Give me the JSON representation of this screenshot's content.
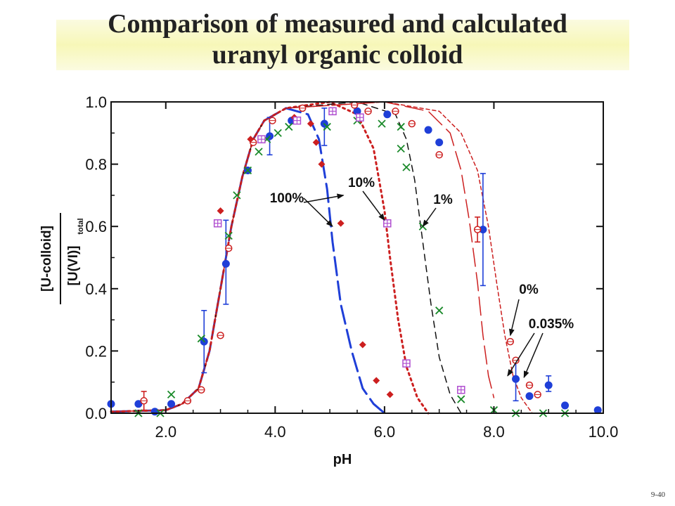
{
  "slide": {
    "title_line1": "Comparison of measured and calculated",
    "title_line2": "uranyl organic colloid",
    "page_number": "9-40"
  },
  "chart_data": {
    "type": "scatter",
    "xlabel": "pH",
    "ylabel_numerator": "[U-colloid]",
    "ylabel_denominator": "[U(VI)]",
    "ylabel_subscript": "total",
    "xlim": [
      1.0,
      10.0
    ],
    "ylim": [
      0.0,
      1.0
    ],
    "xticks": [
      "2.0",
      "4.0",
      "6.0",
      "8.0",
      "10.0"
    ],
    "xtick_values": [
      2,
      4,
      6,
      8,
      10
    ],
    "yticks": [
      "0.0",
      "0.2",
      "0.4",
      "0.6",
      "0.8",
      "1.0"
    ],
    "ytick_values": [
      0,
      0.2,
      0.4,
      0.6,
      0.8,
      1.0
    ],
    "colors": {
      "blue": "#1f3fd8",
      "red": "#cc1f1f",
      "green": "#1a8a2a",
      "violet": "#b04fd0",
      "black": "#111111"
    },
    "curves": [
      {
        "label": "100%",
        "style": "long-dash",
        "color": "#1f3fd8",
        "width": 3,
        "points": [
          [
            1.0,
            0.005
          ],
          [
            2.0,
            0.01
          ],
          [
            2.3,
            0.03
          ],
          [
            2.6,
            0.08
          ],
          [
            2.8,
            0.2
          ],
          [
            3.0,
            0.4
          ],
          [
            3.2,
            0.6
          ],
          [
            3.4,
            0.76
          ],
          [
            3.6,
            0.88
          ],
          [
            3.8,
            0.94
          ],
          [
            4.2,
            0.98
          ],
          [
            4.6,
            0.96
          ],
          [
            4.8,
            0.88
          ],
          [
            4.95,
            0.72
          ],
          [
            5.05,
            0.55
          ],
          [
            5.2,
            0.35
          ],
          [
            5.4,
            0.2
          ],
          [
            5.6,
            0.08
          ],
          [
            5.8,
            0.03
          ],
          [
            6.0,
            0.0
          ]
        ]
      },
      {
        "label": "10%",
        "style": "dotted",
        "color": "#cc1f1f",
        "width": 3,
        "points": [
          [
            1.0,
            0.005
          ],
          [
            2.0,
            0.01
          ],
          [
            2.3,
            0.03
          ],
          [
            2.6,
            0.08
          ],
          [
            2.8,
            0.2
          ],
          [
            3.0,
            0.4
          ],
          [
            3.2,
            0.6
          ],
          [
            3.4,
            0.76
          ],
          [
            3.6,
            0.88
          ],
          [
            3.8,
            0.94
          ],
          [
            4.2,
            0.98
          ],
          [
            5.0,
            1.0
          ],
          [
            5.5,
            0.96
          ],
          [
            5.8,
            0.85
          ],
          [
            6.0,
            0.65
          ],
          [
            6.1,
            0.5
          ],
          [
            6.25,
            0.3
          ],
          [
            6.4,
            0.15
          ],
          [
            6.6,
            0.05
          ],
          [
            6.8,
            0.0
          ]
        ]
      },
      {
        "label": "1%",
        "style": "dash",
        "color": "#111111",
        "width": 1.5,
        "points": [
          [
            1.0,
            0.005
          ],
          [
            2.0,
            0.01
          ],
          [
            2.3,
            0.03
          ],
          [
            2.6,
            0.08
          ],
          [
            2.8,
            0.2
          ],
          [
            3.0,
            0.4
          ],
          [
            3.2,
            0.6
          ],
          [
            3.4,
            0.76
          ],
          [
            3.6,
            0.88
          ],
          [
            3.8,
            0.94
          ],
          [
            4.2,
            0.98
          ],
          [
            5.5,
            1.0
          ],
          [
            6.2,
            0.96
          ],
          [
            6.4,
            0.88
          ],
          [
            6.55,
            0.75
          ],
          [
            6.7,
            0.55
          ],
          [
            6.85,
            0.35
          ],
          [
            7.0,
            0.18
          ],
          [
            7.2,
            0.06
          ],
          [
            7.4,
            0.0
          ]
        ]
      },
      {
        "label": "0%",
        "style": "long-dash",
        "color": "#cc1f1f",
        "width": 1.5,
        "points": [
          [
            1.0,
            0.005
          ],
          [
            2.0,
            0.01
          ],
          [
            2.3,
            0.03
          ],
          [
            2.6,
            0.08
          ],
          [
            2.8,
            0.2
          ],
          [
            3.0,
            0.4
          ],
          [
            3.2,
            0.6
          ],
          [
            3.4,
            0.76
          ],
          [
            3.6,
            0.88
          ],
          [
            3.8,
            0.94
          ],
          [
            4.2,
            0.98
          ],
          [
            6.0,
            1.0
          ],
          [
            6.8,
            0.97
          ],
          [
            7.2,
            0.9
          ],
          [
            7.4,
            0.78
          ],
          [
            7.55,
            0.62
          ],
          [
            7.7,
            0.42
          ],
          [
            7.8,
            0.25
          ],
          [
            7.9,
            0.12
          ],
          [
            8.0,
            0.05
          ]
        ]
      },
      {
        "label": "0.035%",
        "style": "short-dash",
        "color": "#cc1f1f",
        "width": 1.5,
        "points": [
          [
            1.0,
            0.005
          ],
          [
            2.0,
            0.01
          ],
          [
            2.3,
            0.03
          ],
          [
            2.6,
            0.08
          ],
          [
            2.8,
            0.2
          ],
          [
            3.0,
            0.4
          ],
          [
            3.2,
            0.6
          ],
          [
            3.4,
            0.76
          ],
          [
            3.6,
            0.88
          ],
          [
            3.8,
            0.94
          ],
          [
            4.2,
            0.98
          ],
          [
            6.0,
            1.0
          ],
          [
            7.0,
            0.97
          ],
          [
            7.4,
            0.9
          ],
          [
            7.7,
            0.78
          ],
          [
            7.9,
            0.6
          ],
          [
            8.05,
            0.42
          ],
          [
            8.2,
            0.25
          ],
          [
            8.35,
            0.12
          ],
          [
            8.5,
            0.05
          ],
          [
            8.7,
            0.0
          ]
        ]
      }
    ],
    "series": [
      {
        "marker": "filled-circle",
        "color": "#1f3fd8",
        "points": [
          [
            1.0,
            0.03
          ],
          [
            1.5,
            0.03
          ],
          [
            1.8,
            0.005
          ],
          [
            2.1,
            0.03
          ],
          [
            2.7,
            0.23
          ],
          [
            3.1,
            0.48
          ],
          [
            3.5,
            0.78
          ],
          [
            3.9,
            0.89
          ],
          [
            4.3,
            0.94
          ],
          [
            4.9,
            0.93
          ],
          [
            5.5,
            0.97
          ],
          [
            6.05,
            0.96
          ],
          [
            6.8,
            0.91
          ],
          [
            7.0,
            0.87
          ],
          [
            7.8,
            0.59
          ],
          [
            8.4,
            0.11
          ],
          [
            8.65,
            0.055
          ],
          [
            9.0,
            0.09
          ],
          [
            9.3,
            0.025
          ],
          [
            9.9,
            0.01
          ]
        ],
        "errors": [
          [
            2.7,
            0.13,
            0.33
          ],
          [
            3.1,
            0.35,
            0.62
          ],
          [
            3.9,
            0.83,
            0.95
          ],
          [
            4.9,
            0.86,
            0.98
          ],
          [
            7.8,
            0.41,
            0.77
          ],
          [
            8.4,
            0.04,
            0.17
          ],
          [
            9.0,
            0.07,
            0.12
          ]
        ]
      },
      {
        "marker": "open-circle",
        "color": "#cc1f1f",
        "points": [
          [
            1.6,
            0.04
          ],
          [
            2.4,
            0.04
          ],
          [
            2.65,
            0.075
          ],
          [
            3.0,
            0.25
          ],
          [
            3.15,
            0.53
          ],
          [
            3.6,
            0.87
          ],
          [
            3.95,
            0.94
          ],
          [
            4.5,
            0.98
          ],
          [
            5.05,
            0.97
          ],
          [
            5.45,
            0.99
          ],
          [
            5.7,
            0.97
          ],
          [
            6.2,
            0.97
          ],
          [
            6.5,
            0.93
          ],
          [
            7.0,
            0.83
          ],
          [
            7.7,
            0.59
          ],
          [
            8.3,
            0.23
          ],
          [
            8.4,
            0.17
          ],
          [
            8.65,
            0.09
          ],
          [
            8.8,
            0.06
          ]
        ],
        "errors": [
          [
            1.6,
            0.01,
            0.07
          ],
          [
            7.7,
            0.55,
            0.63
          ]
        ]
      },
      {
        "marker": "filled-diamond",
        "color": "#cc1f1f",
        "points": [
          [
            3.0,
            0.65
          ],
          [
            3.55,
            0.88
          ],
          [
            4.35,
            0.95
          ],
          [
            4.65,
            0.93
          ],
          [
            4.75,
            0.87
          ],
          [
            4.85,
            0.8
          ],
          [
            5.2,
            0.61
          ],
          [
            5.6,
            0.22
          ],
          [
            5.85,
            0.105
          ],
          [
            6.1,
            0.06
          ]
        ]
      },
      {
        "marker": "cross",
        "color": "#1a8a2a",
        "points": [
          [
            1.5,
            0.0
          ],
          [
            1.9,
            0.0
          ],
          [
            2.1,
            0.06
          ],
          [
            2.65,
            0.24
          ],
          [
            3.15,
            0.57
          ],
          [
            3.3,
            0.7
          ],
          [
            3.5,
            0.78
          ],
          [
            3.7,
            0.84
          ],
          [
            3.85,
            0.88
          ],
          [
            4.05,
            0.9
          ],
          [
            4.25,
            0.92
          ],
          [
            4.95,
            0.92
          ],
          [
            5.5,
            0.94
          ],
          [
            5.95,
            0.93
          ],
          [
            6.3,
            0.92
          ],
          [
            6.3,
            0.85
          ],
          [
            6.4,
            0.79
          ],
          [
            6.7,
            0.6
          ],
          [
            7.0,
            0.33
          ],
          [
            7.4,
            0.045
          ],
          [
            8.0,
            0.01
          ],
          [
            8.4,
            0.0
          ],
          [
            8.9,
            0.0
          ],
          [
            9.3,
            0.0
          ]
        ]
      },
      {
        "marker": "boxed-plus",
        "color": "#b04fd0",
        "points": [
          [
            2.95,
            0.61
          ],
          [
            3.75,
            0.88
          ],
          [
            4.4,
            0.94
          ],
          [
            5.05,
            0.97
          ],
          [
            5.55,
            0.95
          ],
          [
            6.05,
            0.61
          ],
          [
            6.4,
            0.16
          ],
          [
            7.4,
            0.075
          ]
        ]
      }
    ],
    "annotations": [
      {
        "text": "100%",
        "arrows_to": [
          [
            5.05,
            0.6
          ],
          [
            5.25,
            0.7
          ]
        ]
      },
      {
        "text": "10%",
        "arrows_to": [
          [
            6.0,
            0.62
          ]
        ]
      },
      {
        "text": "1%",
        "arrows_to": [
          [
            6.7,
            0.6
          ]
        ]
      },
      {
        "text": "0%",
        "arrows_to": [
          [
            8.3,
            0.25
          ]
        ]
      },
      {
        "text": "0.035%",
        "arrows_to": [
          [
            8.25,
            0.12
          ],
          [
            8.55,
            0.115
          ]
        ]
      }
    ]
  }
}
